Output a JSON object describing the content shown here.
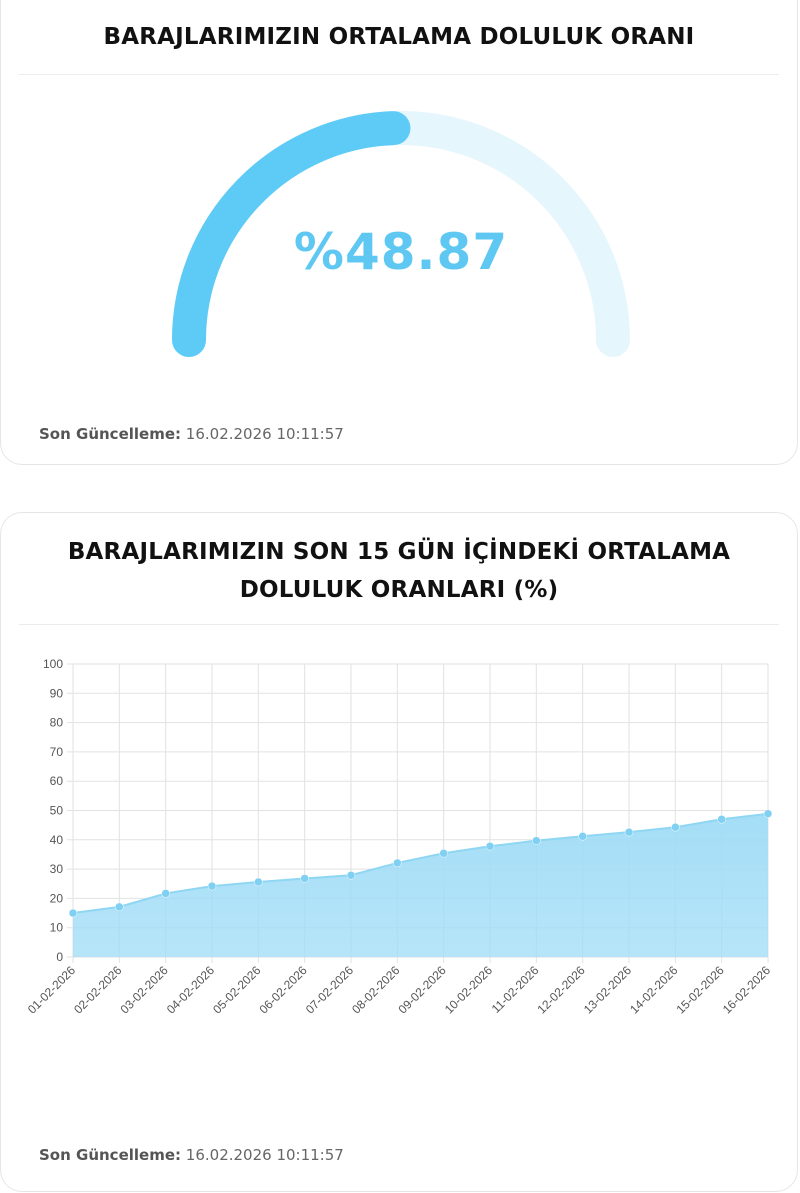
{
  "gauge_card": {
    "title": "BARAJLARIMIZIN ORTALAMA DOLULUK ORANI",
    "value_text": "%48.87",
    "value_percent": 48.87,
    "fill_color": "#5ecbf7",
    "track_color": "#e6f6fd",
    "updated_label": "Son Güncelleme:",
    "updated_value": "16.02.2026 10:11:57"
  },
  "chart_card": {
    "title_line1": "BARAJLARIMIZIN SON 15 GÜN İÇİNDEKİ ORTALAMA",
    "title_line2": "DOLULUK ORANLARI (%)",
    "updated_label": "Son Güncelleme:",
    "updated_value": "16.02.2026 10:11:57"
  },
  "chart_data": {
    "type": "area",
    "title": "BARAJLARIMIZIN SON 15 GÜN İÇİNDEKİ ORTALAMA DOLULUK ORANLARI (%)",
    "x": [
      "01-02-2026",
      "02-02-2026",
      "03-02-2026",
      "04-02-2026",
      "05-02-2026",
      "06-02-2026",
      "07-02-2026",
      "08-02-2026",
      "09-02-2026",
      "10-02-2026",
      "11-02-2026",
      "12-02-2026",
      "13-02-2026",
      "14-02-2026",
      "15-02-2026",
      "16-02-2026"
    ],
    "values": [
      15.0,
      17.1,
      21.7,
      24.2,
      25.6,
      26.8,
      27.9,
      32.1,
      35.4,
      37.8,
      39.7,
      41.2,
      42.6,
      44.3,
      47.0,
      48.9
    ],
    "ylim": [
      0,
      100
    ],
    "yticks": [
      0,
      10,
      20,
      30,
      40,
      50,
      60,
      70,
      80,
      90,
      100
    ],
    "grid": true,
    "line_color": "#8fd6f3",
    "fill_color": "#9fdcf6",
    "point_color": "#7fd0f2"
  }
}
